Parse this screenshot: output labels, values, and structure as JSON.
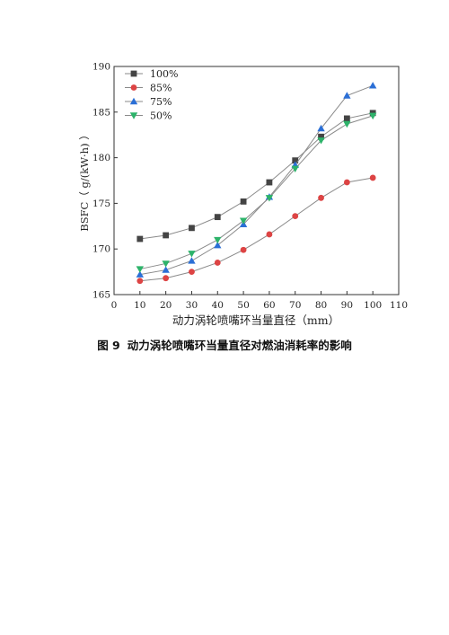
{
  "chart_data": {
    "type": "line",
    "xlabel": "动力涡轮喷嘴环当量直径（mm）",
    "ylabel": "BSFC（ g/(kW·h) ）",
    "xlim": [
      0,
      110
    ],
    "ylim": [
      165,
      190
    ],
    "xticks": [
      0,
      10,
      20,
      30,
      40,
      50,
      60,
      70,
      80,
      90,
      100,
      110
    ],
    "yticks": [
      165,
      170,
      175,
      180,
      185,
      190
    ],
    "x": [
      10,
      20,
      30,
      40,
      50,
      60,
      70,
      80,
      90,
      100
    ],
    "legend_position": "top-left",
    "grid": false,
    "series": [
      {
        "name": "100%",
        "marker": "square",
        "color": "#444444",
        "values": [
          171.1,
          171.5,
          172.3,
          173.5,
          175.2,
          177.3,
          179.7,
          182.3,
          184.3,
          184.9
        ]
      },
      {
        "name": "85%",
        "marker": "circle",
        "color": "#dd4444",
        "values": [
          166.5,
          166.8,
          167.5,
          168.5,
          169.9,
          171.6,
          173.6,
          175.6,
          177.3,
          177.8
        ]
      },
      {
        "name": "75%",
        "marker": "triangle-up",
        "color": "#2b6fd6",
        "values": [
          167.2,
          167.7,
          168.7,
          170.4,
          172.7,
          175.7,
          179.2,
          183.2,
          186.8,
          187.9
        ]
      },
      {
        "name": "50%",
        "marker": "triangle-down",
        "color": "#2db36a",
        "values": [
          167.8,
          168.4,
          169.5,
          171.0,
          173.1,
          175.6,
          178.8,
          181.9,
          183.7,
          184.6
        ]
      }
    ]
  },
  "caption": {
    "number": "图 9",
    "text": "动力涡轮喷嘴环当量直径对燃油消耗率的影响"
  }
}
